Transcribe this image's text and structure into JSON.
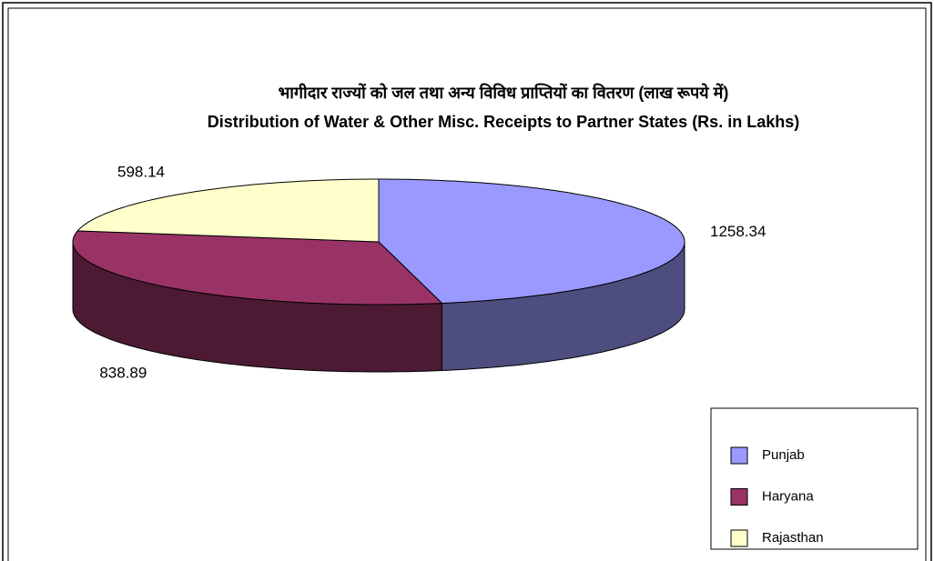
{
  "chart_data": {
    "type": "pie3d",
    "title": "भागीदार राज्यों को जल तथा अन्य विविध प्राप्तियों का वितरण (लाख रूपये में)",
    "subtitle": "Distribution of Water & Other Misc. Receipts to Partner States (Rs. in Lakhs)",
    "categories": [
      "Punjab",
      "Haryana",
      "Rajasthan"
    ],
    "values": [
      1258.34,
      838.89,
      598.14
    ],
    "colors": [
      "#9999ff",
      "#993366",
      "#ffffcc"
    ],
    "side_colors": [
      "#4d4d80",
      "#4d1a33",
      "#80806a"
    ],
    "legend": "bottom-right"
  }
}
